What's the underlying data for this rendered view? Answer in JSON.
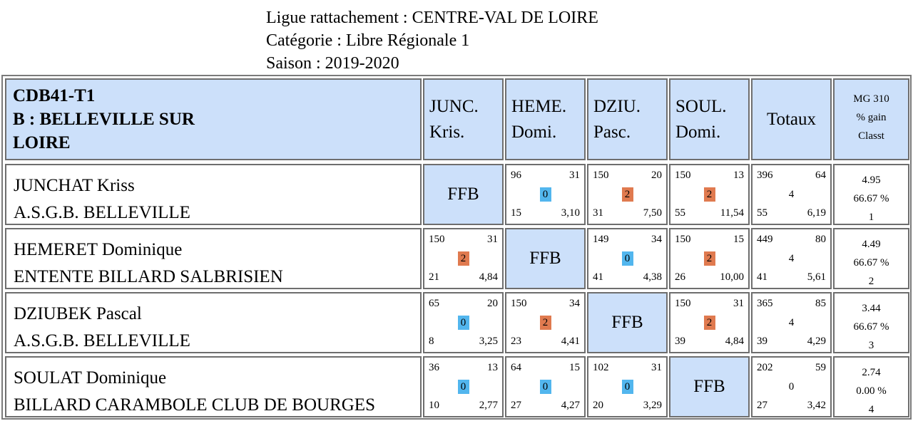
{
  "header": {
    "ligue": "Ligue rattachement : CENTRE-VAL DE LOIRE",
    "categorie": "Catégorie : Libre Régionale 1",
    "saison": "Saison : 2019-2020"
  },
  "table_title": {
    "line1": "CDB41-T1",
    "line2": "B : BELLEVILLE SUR",
    "line3": "LOIRE"
  },
  "columns": [
    {
      "line1": "JUNC.",
      "line2": "Kris."
    },
    {
      "line1": "HEME.",
      "line2": "Domi."
    },
    {
      "line1": "DZIU.",
      "line2": "Pasc."
    },
    {
      "line1": "SOUL.",
      "line2": "Domi."
    }
  ],
  "totaux_label": "Totaux",
  "mg_header": {
    "line1": "MG 310",
    "line2": "% gain",
    "line3": "Classt"
  },
  "ffb_label": "FFB",
  "colors": {
    "win": "#e07a4f",
    "loss": "#52b6ee",
    "header_bg": "#cce0fa"
  },
  "players": [
    {
      "name": "JUNCHAT Kriss",
      "club": "A.S.G.B. BELLEVILLE",
      "matches": [
        null,
        {
          "points": "96",
          "series": "31",
          "pts": "0",
          "result": "loss",
          "reprises": "15",
          "moyenne": "3,10"
        },
        {
          "points": "150",
          "series": "20",
          "pts": "2",
          "result": "win",
          "reprises": "31",
          "moyenne": "7,50"
        },
        {
          "points": "150",
          "series": "13",
          "pts": "2",
          "result": "win",
          "reprises": "55",
          "moyenne": "11,54"
        }
      ],
      "totaux": {
        "points": "396",
        "series": "64",
        "pts": "4",
        "reprises": "55",
        "moyenne": "6,19"
      },
      "stats": {
        "mg": "4.95",
        "gain": "66.67 %",
        "classt": "1"
      }
    },
    {
      "name": "HEMERET Dominique",
      "club": "ENTENTE BILLARD SALBRISIEN",
      "matches": [
        {
          "points": "150",
          "series": "31",
          "pts": "2",
          "result": "win",
          "reprises": "21",
          "moyenne": "4,84"
        },
        null,
        {
          "points": "149",
          "series": "34",
          "pts": "0",
          "result": "loss",
          "reprises": "41",
          "moyenne": "4,38"
        },
        {
          "points": "150",
          "series": "15",
          "pts": "2",
          "result": "win",
          "reprises": "26",
          "moyenne": "10,00"
        }
      ],
      "totaux": {
        "points": "449",
        "series": "80",
        "pts": "4",
        "reprises": "41",
        "moyenne": "5,61"
      },
      "stats": {
        "mg": "4.49",
        "gain": "66.67 %",
        "classt": "2"
      }
    },
    {
      "name": "DZIUBEK Pascal",
      "club": "A.S.G.B. BELLEVILLE",
      "matches": [
        {
          "points": "65",
          "series": "20",
          "pts": "0",
          "result": "loss",
          "reprises": "8",
          "moyenne": "3,25"
        },
        {
          "points": "150",
          "series": "34",
          "pts": "2",
          "result": "win",
          "reprises": "23",
          "moyenne": "4,41"
        },
        null,
        {
          "points": "150",
          "series": "31",
          "pts": "2",
          "result": "win",
          "reprises": "39",
          "moyenne": "4,84"
        }
      ],
      "totaux": {
        "points": "365",
        "series": "85",
        "pts": "4",
        "reprises": "39",
        "moyenne": "4,29"
      },
      "stats": {
        "mg": "3.44",
        "gain": "66.67 %",
        "classt": "3"
      }
    },
    {
      "name": "SOULAT Dominique",
      "club": "BILLARD CARAMBOLE CLUB DE BOURGES",
      "matches": [
        {
          "points": "36",
          "series": "13",
          "pts": "0",
          "result": "loss",
          "reprises": "10",
          "moyenne": "2,77"
        },
        {
          "points": "64",
          "series": "15",
          "pts": "0",
          "result": "loss",
          "reprises": "27",
          "moyenne": "4,27"
        },
        {
          "points": "102",
          "series": "31",
          "pts": "0",
          "result": "loss",
          "reprises": "20",
          "moyenne": "3,29"
        },
        null
      ],
      "totaux": {
        "points": "202",
        "series": "59",
        "pts": "0",
        "reprises": "27",
        "moyenne": "3,42"
      },
      "stats": {
        "mg": "2.74",
        "gain": "0.00 %",
        "classt": "4"
      }
    }
  ]
}
